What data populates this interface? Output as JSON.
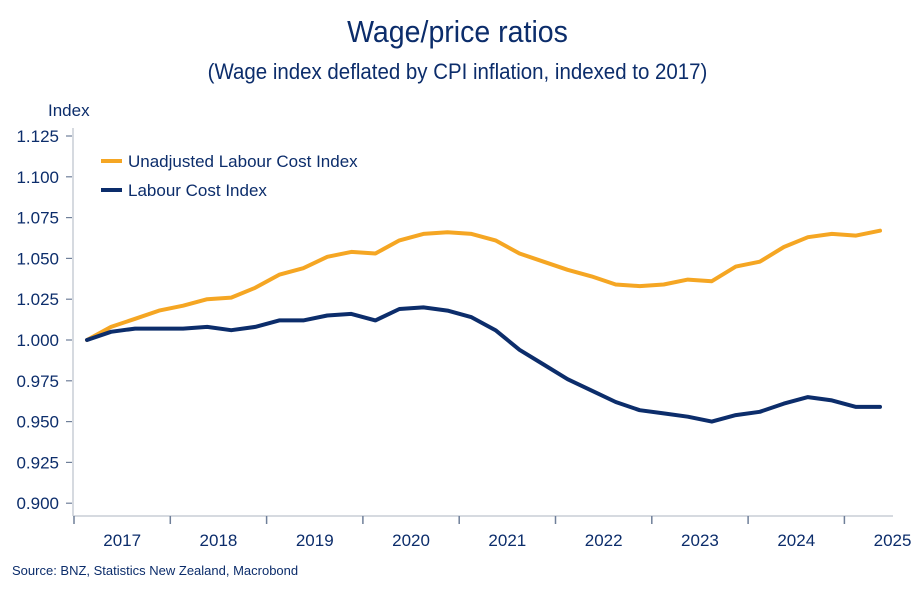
{
  "chart_data": {
    "type": "line",
    "title": "Wage/price ratios",
    "subtitle": "(Wage index deflated by CPI inflation, indexed to 2017)",
    "ylabel": "Index",
    "xlabel": "",
    "ylim": [
      0.9,
      1.125
    ],
    "yticks": [
      "0.900",
      "0.925",
      "0.950",
      "0.975",
      "1.000",
      "1.025",
      "1.050",
      "1.075",
      "1.100",
      "1.125"
    ],
    "xtick_labels": [
      "2017",
      "2018",
      "2019",
      "2020",
      "2021",
      "2022",
      "2023",
      "2024",
      "2025"
    ],
    "frequency": "quarterly",
    "x": [
      "2017Q1",
      "2017Q2",
      "2017Q3",
      "2017Q4",
      "2018Q1",
      "2018Q2",
      "2018Q3",
      "2018Q4",
      "2019Q1",
      "2019Q2",
      "2019Q3",
      "2019Q4",
      "2020Q1",
      "2020Q2",
      "2020Q3",
      "2020Q4",
      "2021Q1",
      "2021Q2",
      "2021Q3",
      "2021Q4",
      "2022Q1",
      "2022Q2",
      "2022Q3",
      "2022Q4",
      "2023Q1",
      "2023Q2",
      "2023Q3",
      "2023Q4",
      "2024Q1",
      "2024Q2",
      "2024Q3",
      "2024Q4",
      "2025Q1",
      "2025Q2"
    ],
    "series": [
      {
        "name": "Unadjusted Labour Cost Index",
        "color": "#f5a623",
        "values": [
          1.0,
          1.008,
          1.013,
          1.018,
          1.021,
          1.025,
          1.026,
          1.032,
          1.04,
          1.044,
          1.051,
          1.054,
          1.053,
          1.061,
          1.065,
          1.066,
          1.065,
          1.061,
          1.053,
          1.048,
          1.043,
          1.039,
          1.034,
          1.033,
          1.034,
          1.037,
          1.036,
          1.045,
          1.048,
          1.057,
          1.063,
          1.065,
          1.064,
          1.067
        ]
      },
      {
        "name": "Labour Cost Index",
        "color": "#0c2d6b",
        "values": [
          1.0,
          1.005,
          1.007,
          1.007,
          1.007,
          1.008,
          1.006,
          1.008,
          1.012,
          1.012,
          1.015,
          1.016,
          1.012,
          1.019,
          1.02,
          1.018,
          1.014,
          1.006,
          0.994,
          0.985,
          0.976,
          0.969,
          0.962,
          0.957,
          0.955,
          0.953,
          0.95,
          0.954,
          0.956,
          0.961,
          0.965,
          0.963,
          0.959,
          0.959
        ]
      }
    ],
    "legend_position": "top-left",
    "grid": false
  },
  "source": "Source: BNZ, Statistics New Zealand, Macrobond",
  "colors": {
    "text": "#0c2d6b",
    "axis": "#c8cdd6",
    "tick": "#6f7f99"
  }
}
